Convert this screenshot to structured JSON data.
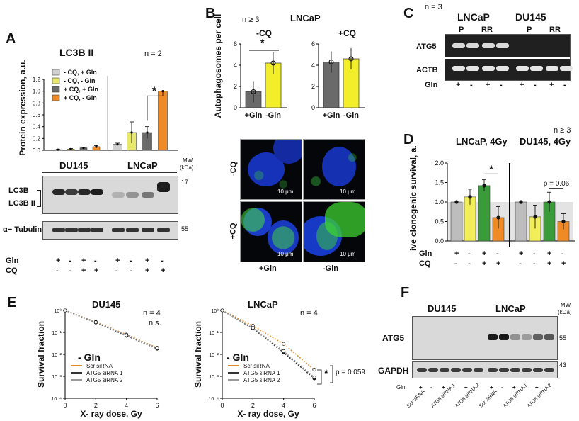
{
  "panels": {
    "A": {
      "label": "A",
      "title": "LC3B II",
      "n": "n = 2",
      "star": "*",
      "ylabel": "Protein expression, a.u.",
      "yticks": [
        "0.0",
        "0.2",
        "0.4",
        "0.6",
        "0.8",
        "1.0",
        "1.2"
      ],
      "legend": [
        "- CQ, + Gln",
        "- CQ, - Gln",
        "+ CQ, + Gln",
        "+ CQ, - Gln"
      ],
      "legend_colors": [
        "#d0d0d0",
        "#e8e86a",
        "#6a6a6a",
        "#f08a24"
      ],
      "lines": [
        "DU145",
        "LNCaP"
      ],
      "mw_header": "MW",
      "mw_unit": "(kDa)",
      "mw": [
        "17",
        "55"
      ],
      "bands": [
        "LC3B",
        "LC3B II",
        "α− Tubulin"
      ],
      "rows": [
        {
          "label": "Gln",
          "signs": [
            "+",
            "-",
            "+",
            "-",
            "+",
            "-",
            "+",
            "-"
          ]
        },
        {
          "label": "CQ",
          "signs": [
            "-",
            "-",
            "+",
            "+",
            "-",
            "-",
            "+",
            "+"
          ]
        }
      ]
    },
    "B": {
      "label": "B",
      "n": "n ≥ 3",
      "title": "LNCaP",
      "ylabel": "Autophagosomes per cell",
      "left_title": "-CQ",
      "right_title": "+CQ",
      "star": "*",
      "yticks": [
        "0",
        "2",
        "4",
        "6"
      ],
      "xcats": [
        "+Gln",
        "-Gln"
      ],
      "row_labels": [
        "-CQ",
        "+CQ"
      ],
      "col_labels": [
        "+Gln",
        "-Gln"
      ],
      "scale": "10 μm"
    },
    "C": {
      "label": "C",
      "n": "n = 3",
      "lines": [
        "LNCaP",
        "DU145"
      ],
      "sub": [
        "P",
        "RR",
        "P",
        "RR"
      ],
      "bands": [
        "ATG5",
        "ACTB"
      ],
      "gln_label": "Gln",
      "gln": [
        "+",
        "-",
        "+",
        "-",
        "+",
        "-",
        "+",
        "-"
      ]
    },
    "D": {
      "label": "D",
      "n": "n ≥ 3",
      "title_left": "LNCaP, 4Gy",
      "title_right": "DU145, 4Gy",
      "star": "*",
      "pval": "p = 0.06",
      "ylabel": "Relative clonogenic survival, a.u.",
      "yticks": [
        "0.0",
        "0.5",
        "1.0",
        "1.5",
        "2.0"
      ],
      "rows": [
        {
          "label": "Gln",
          "signs": [
            "+",
            "-",
            "+",
            "-",
            "+",
            "-",
            "+",
            "-"
          ]
        },
        {
          "label": "CQ",
          "signs": [
            "-",
            "-",
            "+",
            "+",
            "-",
            "-",
            "+",
            "+"
          ]
        }
      ]
    },
    "E": {
      "label": "E",
      "left_title": "DU145",
      "right_title": "LNCaP",
      "left_n": "n = 4",
      "left_ns": "n.s.",
      "right_n": "n = 4",
      "ylabel": "Survival fraction",
      "xlabel": "X- ray dose, Gy",
      "xticks": [
        "0",
        "2",
        "4",
        "6"
      ],
      "yticks": [
        "10⁰",
        "10⁻¹",
        "10⁻²",
        "10⁻³",
        "10⁻⁴"
      ],
      "condition": "- Gln",
      "legend": [
        "Scr siRNA",
        "ATG5 siRNA 1",
        "ATG5 siRNA 2"
      ],
      "legend_colors": [
        "#e08a2a",
        "#333333",
        "#999999"
      ],
      "star": "*",
      "pval": "p = 0.059"
    },
    "F": {
      "label": "F",
      "lines": [
        "DU145",
        "LNCaP"
      ],
      "mw_header": "MW",
      "mw_unit": "(kDa)",
      "mw": [
        "55",
        "43"
      ],
      "bands": [
        "ATG5",
        "GAPDH"
      ],
      "gln_label": "Gln",
      "gln": [
        "+",
        "-",
        "+",
        "-",
        "+",
        "-",
        "+",
        "-",
        "+",
        "-",
        "+",
        "-"
      ],
      "siRNA": [
        "Scr siRNA",
        "ATG5 siRNA 1",
        "ATG5 siRNA 2",
        "Scr siRNA",
        "ATG5 siRNA 1",
        "ATG5 siRNA 2"
      ]
    }
  },
  "chart_data": [
    {
      "panel": "A",
      "type": "bar",
      "categories": [
        "DU145 -CQ+Gln",
        "DU145 -CQ-Gln",
        "DU145 +CQ+Gln",
        "DU145 +CQ-Gln",
        "LNCaP -CQ+Gln",
        "LNCaP -CQ-Gln",
        "LNCaP +CQ+Gln",
        "LNCaP +CQ-Gln"
      ],
      "values": [
        0.01,
        0.02,
        0.04,
        0.06,
        0.1,
        0.3,
        0.3,
        1.0
      ],
      "errors": [
        0.005,
        0.01,
        0.01,
        0.02,
        0.02,
        0.18,
        0.1,
        0.0
      ],
      "ylim": [
        0,
        1.2
      ]
    },
    {
      "panel": "B",
      "type": "bar",
      "groups": [
        {
          "name": "-CQ",
          "values": [
            1.5,
            4.2
          ]
        },
        {
          "name": "+CQ",
          "values": [
            4.3,
            4.6
          ]
        }
      ],
      "categories": [
        "+Gln",
        "-Gln"
      ],
      "ylim": [
        0,
        6
      ]
    },
    {
      "panel": "D",
      "type": "bar",
      "categories": [
        "LNCaP 1",
        "LNCaP 2",
        "LNCaP 3",
        "LNCaP 4",
        "DU145 1",
        "DU145 2",
        "DU145 3",
        "DU145 4"
      ],
      "values": [
        1.0,
        1.13,
        1.42,
        0.6,
        1.0,
        0.62,
        1.0,
        0.5
      ],
      "errors": [
        0.0,
        0.2,
        0.15,
        0.28,
        0.0,
        0.3,
        0.25,
        0.2
      ],
      "ylim": [
        0,
        2.0
      ]
    },
    {
      "panel": "E-DU145",
      "type": "line",
      "x": [
        0,
        2,
        4,
        6
      ],
      "series": [
        {
          "name": "Scr siRNA",
          "values": [
            1.0,
            0.3,
            0.08,
            0.02
          ]
        },
        {
          "name": "ATG5 siRNA 1",
          "values": [
            1.0,
            0.28,
            0.07,
            0.018
          ]
        },
        {
          "name": "ATG5 siRNA 2",
          "values": [
            1.0,
            0.29,
            0.075,
            0.019
          ]
        }
      ]
    },
    {
      "panel": "E-LNCaP",
      "type": "line",
      "x": [
        0,
        2,
        4,
        6
      ],
      "series": [
        {
          "name": "Scr siRNA",
          "values": [
            1.0,
            0.2,
            0.03,
            0.002
          ]
        },
        {
          "name": "ATG5 siRNA 1",
          "values": [
            1.0,
            0.15,
            0.012,
            0.0008
          ]
        },
        {
          "name": "ATG5 siRNA 2",
          "values": [
            1.0,
            0.16,
            0.014,
            0.0009
          ]
        }
      ]
    }
  ]
}
